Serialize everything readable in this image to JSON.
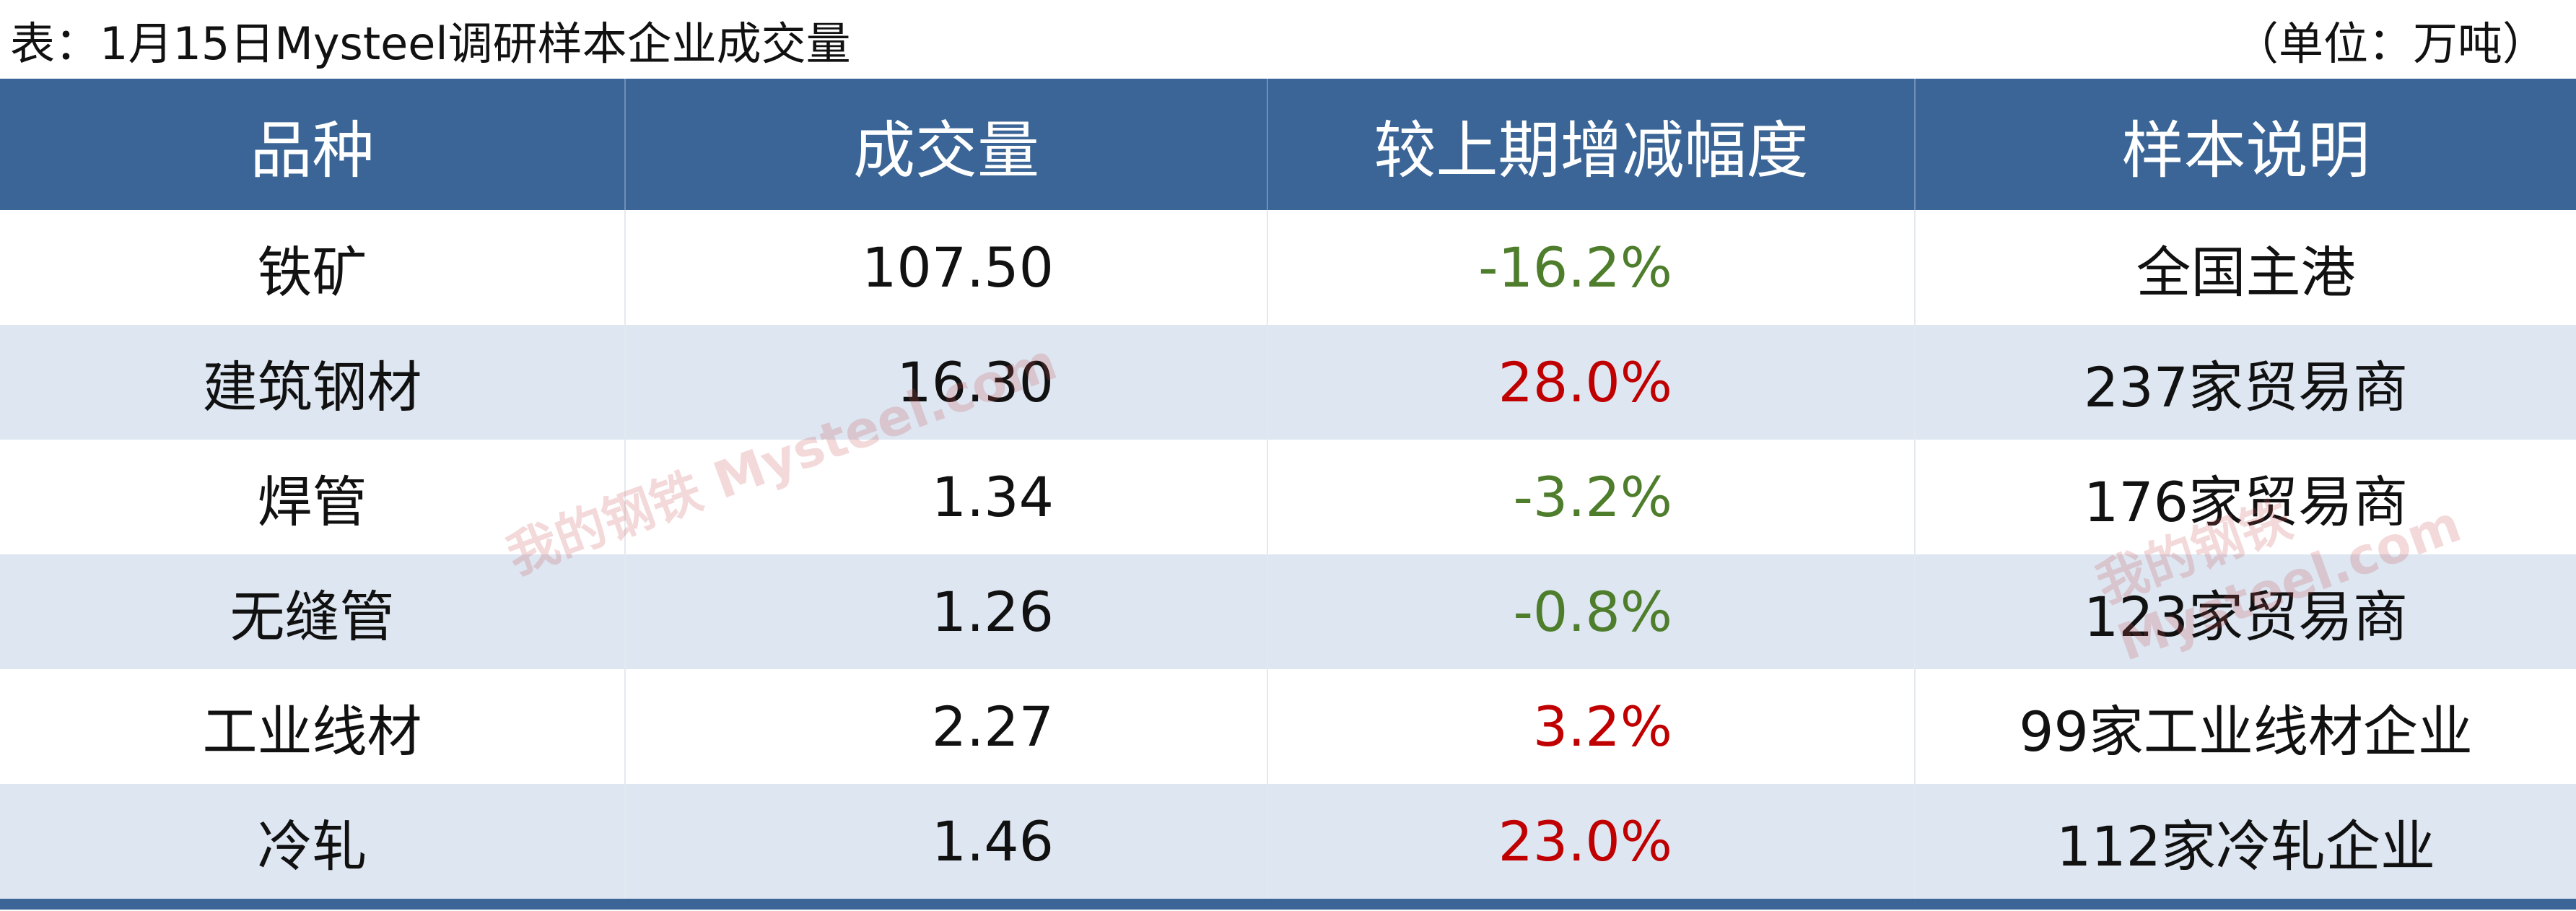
{
  "header": {
    "title": "表：1月15日Mysteel调研样本企业成交量",
    "unit": "（单位：万吨）"
  },
  "table": {
    "columns": [
      "品种",
      "成交量",
      "较上期增减幅度",
      "样本说明"
    ],
    "rows": [
      {
        "cells": [
          "铁矿",
          "107.50",
          "-16.2%",
          "全国主港"
        ],
        "color": "#4e7d2c"
      },
      {
        "cells": [
          "建筑钢材",
          "16.30",
          "28.0%",
          "237家贸易商"
        ],
        "color": "#c00000"
      },
      {
        "cells": [
          "焊管",
          "1.34",
          "-3.2%",
          "176家贸易商"
        ],
        "color": "#4e7d2c"
      },
      {
        "cells": [
          "无缝管",
          "1.26",
          "-0.8%",
          "123家贸易商"
        ],
        "color": "#4e7d2c"
      },
      {
        "cells": [
          "工业线材",
          "2.27",
          "3.2%",
          "99家工业线材企业"
        ],
        "color": "#c00000"
      },
      {
        "cells": [
          "冷轧",
          "1.46",
          "23.0%",
          "112家冷轧企业"
        ],
        "color": "#c00000"
      }
    ]
  },
  "watermark": "我的钢铁 Mysteel.com"
}
